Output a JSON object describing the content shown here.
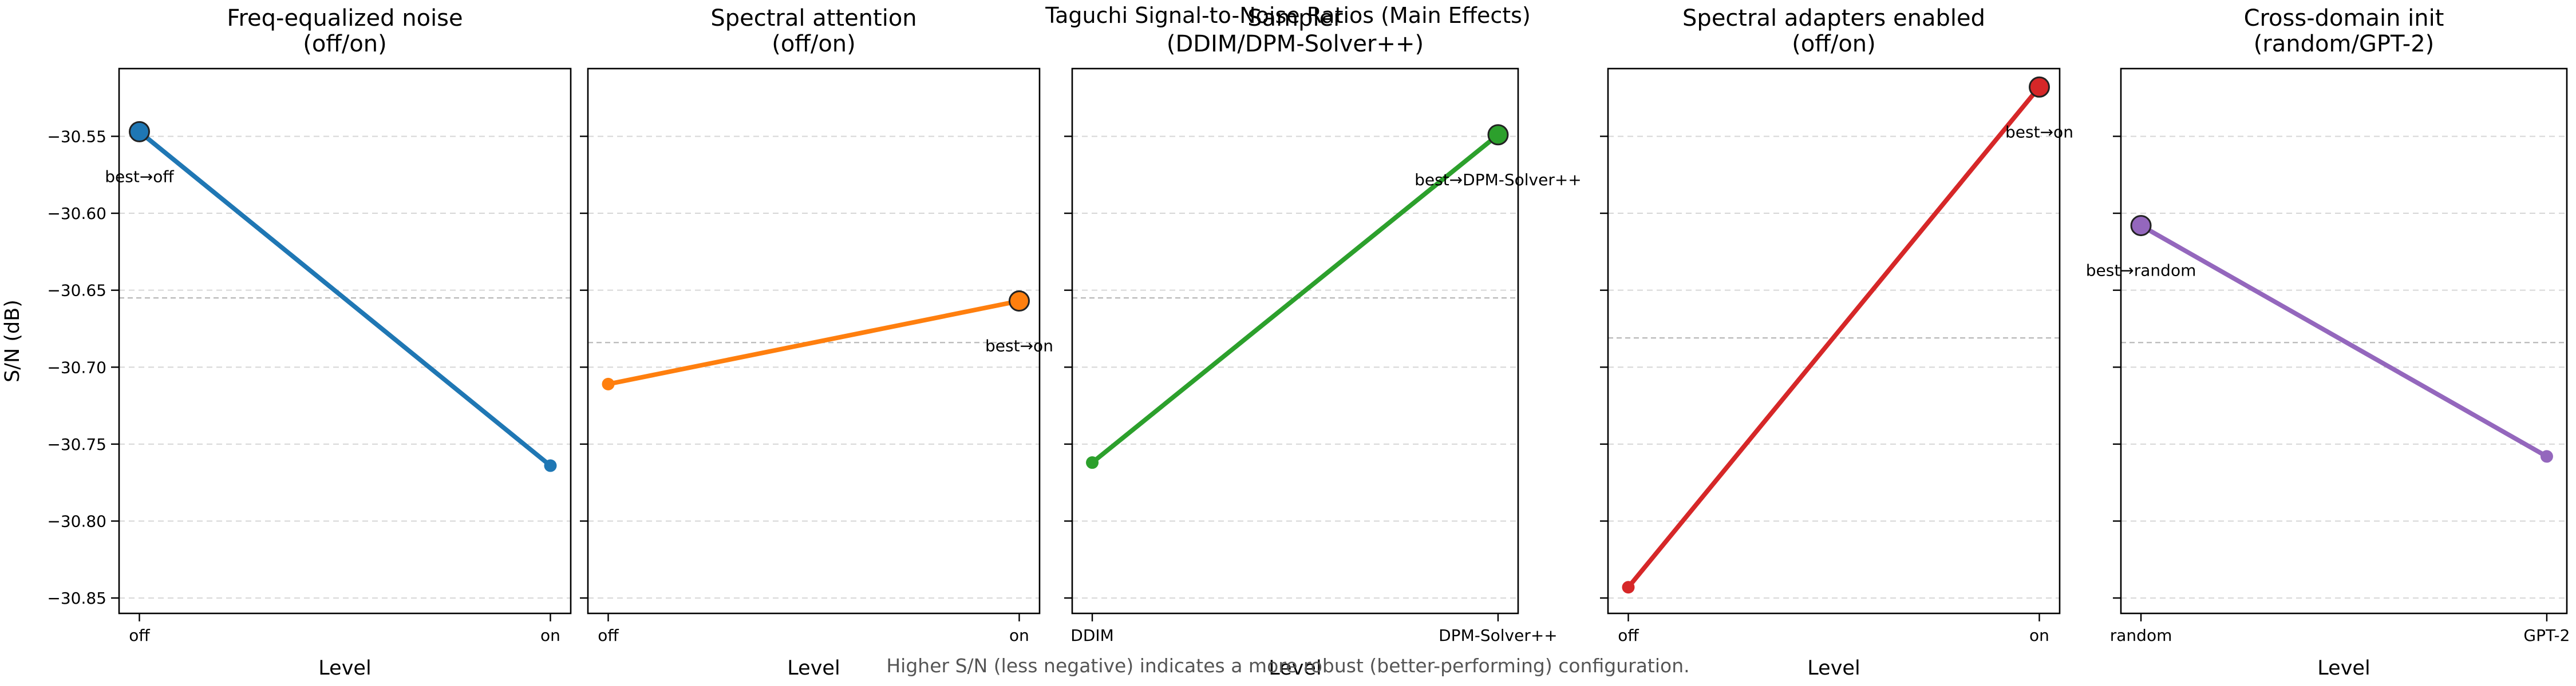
{
  "figure": {
    "suptitle": "Taguchi Signal-to-Noise Ratios (Main Effects)",
    "footnote": "Higher S/N (less negative) indicates a more robust (better-performing) configuration."
  },
  "chart_data": [
    {
      "type": "line",
      "title": "Freq-equalized noise\n(off/on)",
      "xlabel": "Level",
      "ylabel": "S/N (dB)",
      "categories": [
        "off",
        "on"
      ],
      "values": [
        -30.547,
        -30.764
      ],
      "mean": -30.655,
      "best_index": 0,
      "best_label": "best→off",
      "color": "#1f77b4",
      "ylim": [
        -30.86,
        -30.506
      ],
      "yticks": [
        -30.55,
        -30.6,
        -30.65,
        -30.7,
        -30.75,
        -30.8,
        -30.85
      ],
      "grid": "y-dashed"
    },
    {
      "type": "line",
      "title": "Spectral attention\n(off/on)",
      "xlabel": "Level",
      "ylabel": "",
      "categories": [
        "off",
        "on"
      ],
      "values": [
        -30.711,
        -30.657
      ],
      "mean": -30.684,
      "best_index": 1,
      "best_label": "best→on",
      "color": "#ff7f0e",
      "ylim": [
        -30.86,
        -30.506
      ],
      "yticks": [
        -30.55,
        -30.6,
        -30.65,
        -30.7,
        -30.75,
        -30.8,
        -30.85
      ],
      "grid": "y-dashed"
    },
    {
      "type": "line",
      "title": "Sampler\n(DDIM/DPM-Solver++)",
      "xlabel": "Level",
      "ylabel": "",
      "categories": [
        "DDIM",
        "DPM-Solver++"
      ],
      "values": [
        -30.762,
        -30.549
      ],
      "mean": -30.655,
      "best_index": 1,
      "best_label": "best→DPM-Solver++",
      "color": "#2ca02c",
      "ylim": [
        -30.86,
        -30.506
      ],
      "yticks": [
        -30.55,
        -30.6,
        -30.65,
        -30.7,
        -30.75,
        -30.8,
        -30.85
      ],
      "grid": "y-dashed"
    },
    {
      "type": "line",
      "title": "Spectral adapters enabled\n(off/on)",
      "xlabel": "Level",
      "ylabel": "",
      "categories": [
        "off",
        "on"
      ],
      "values": [
        -30.843,
        -30.518
      ],
      "mean": -30.681,
      "best_index": 1,
      "best_label": "best→on",
      "color": "#d62728",
      "ylim": [
        -30.86,
        -30.506
      ],
      "yticks": [
        -30.55,
        -30.6,
        -30.65,
        -30.7,
        -30.75,
        -30.8,
        -30.85
      ],
      "grid": "y-dashed"
    },
    {
      "type": "line",
      "title": "Cross-domain init\n(random/GPT-2)",
      "xlabel": "Level",
      "ylabel": "",
      "categories": [
        "random",
        "GPT-2"
      ],
      "values": [
        -30.608,
        -30.758
      ],
      "mean": -30.684,
      "best_index": 0,
      "best_label": "best→random",
      "color": "#9467bd",
      "ylim": [
        -30.86,
        -30.506
      ],
      "yticks": [
        -30.55,
        -30.6,
        -30.65,
        -30.7,
        -30.75,
        -30.8,
        -30.85
      ],
      "grid": "y-dashed"
    }
  ]
}
